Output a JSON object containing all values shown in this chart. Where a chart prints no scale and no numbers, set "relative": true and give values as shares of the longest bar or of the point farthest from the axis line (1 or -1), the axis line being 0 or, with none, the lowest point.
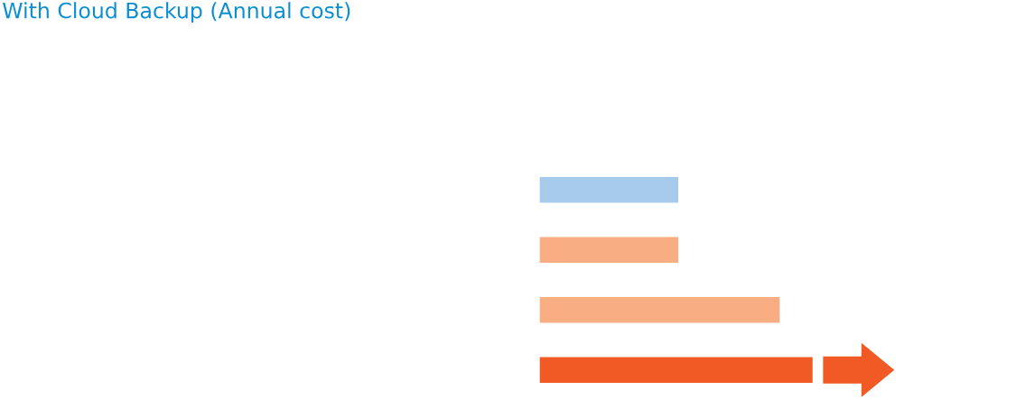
{
  "chart_data": {
    "type": "bar",
    "title": "With Cloud Backup (Annual cost)",
    "orientation": "horizontal",
    "relative": true,
    "categories": [
      null,
      null,
      null,
      null
    ],
    "values": [
      0.51,
      0.51,
      0.88,
      1
    ],
    "colors": [
      "#a6caea",
      "#f9ad82",
      "#f9ad82",
      "#f15a25"
    ]
  }
}
